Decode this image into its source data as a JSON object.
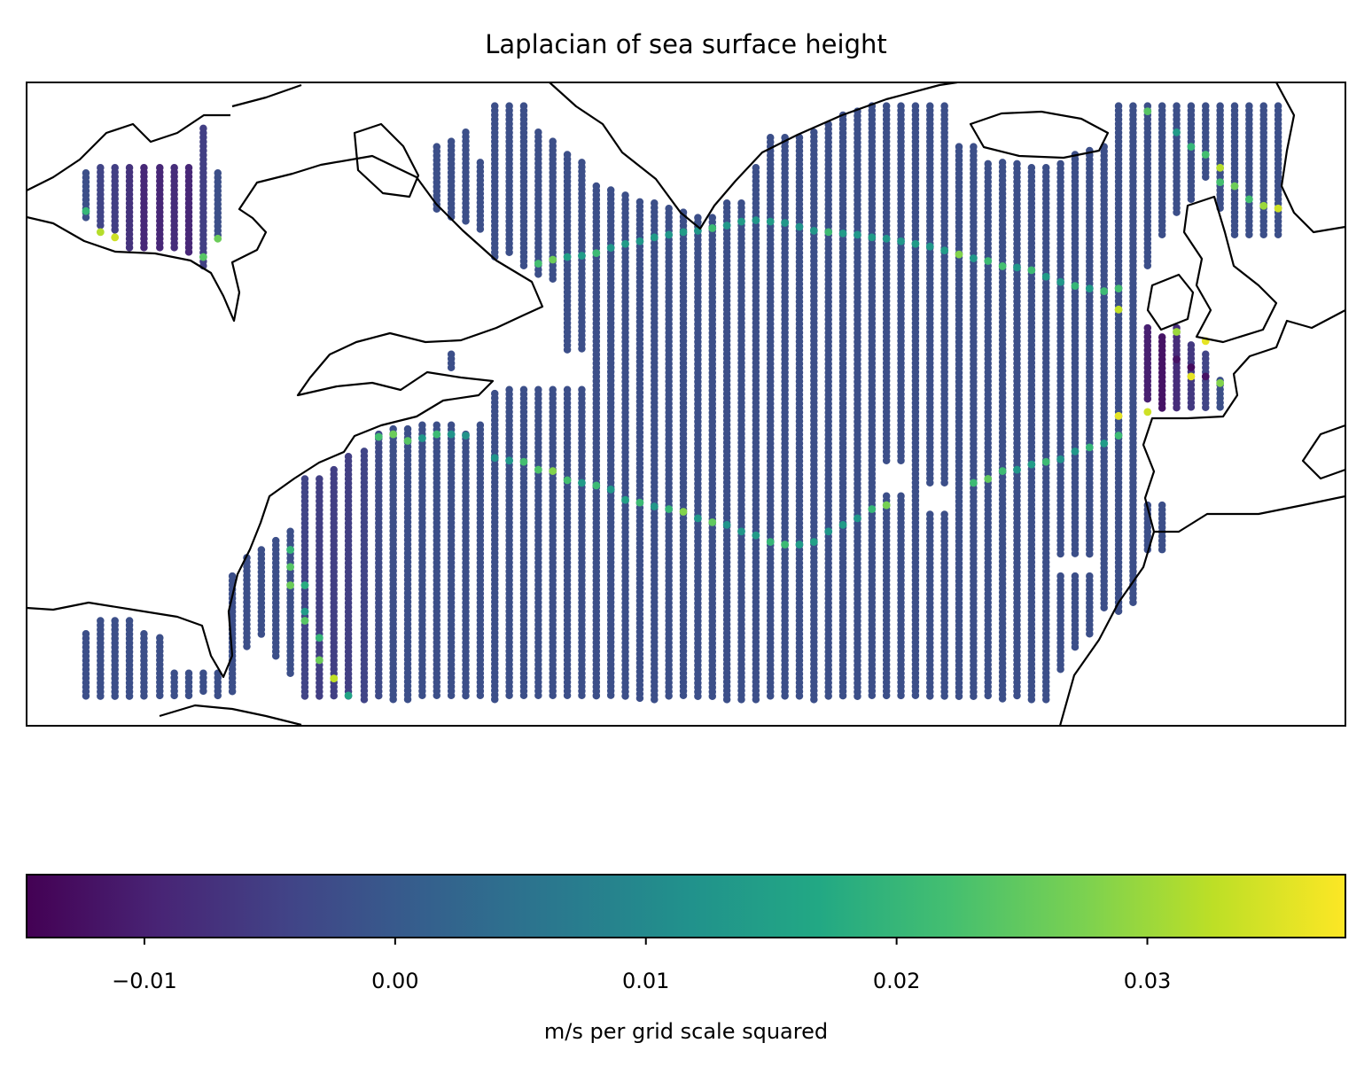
{
  "chart_data": {
    "type": "scatter-map",
    "title": "Laplacian of sea surface height",
    "xlim": [
      -93,
      7
    ],
    "ylim": [
      14,
      63
    ],
    "colorbar": {
      "colormap": "viridis",
      "label": "m/s per grid scale squared",
      "clim": [
        -0.0147,
        0.0379
      ],
      "ticks": [
        {
          "value": -0.01,
          "label": "−0.01"
        },
        {
          "value": 0,
          "label": "0.00"
        },
        0.01,
        0.02,
        0.03
      ]
    },
    "segments": [
      [
        -88.5,
        56.1,
        52.4,
        -0.002
      ],
      [
        -87.4,
        56.5,
        52.1,
        -0.004
      ],
      [
        -86.3,
        56.5,
        51.6,
        -0.005
      ],
      [
        -85.2,
        56.5,
        50.4,
        -0.007
      ],
      [
        -84.1,
        56.5,
        50.4,
        -0.009
      ],
      [
        -82.9,
        56.5,
        50.4,
        -0.009
      ],
      [
        -81.8,
        56.5,
        50.4,
        -0.008
      ],
      [
        -80.7,
        56.5,
        50.0,
        -0.009
      ],
      [
        -79.6,
        59.5,
        49.0,
        -0.005
      ],
      [
        -78.5,
        56.1,
        51.2,
        -0.002
      ],
      [
        -88.5,
        21.0,
        16.0,
        -0.002
      ],
      [
        -87.4,
        22.0,
        16.0,
        -0.002
      ],
      [
        -86.3,
        22.0,
        16.0,
        -0.002
      ],
      [
        -85.2,
        22.0,
        16.0,
        -0.002
      ],
      [
        -84.1,
        21.0,
        16.0,
        -0.002
      ],
      [
        -82.9,
        20.7,
        16.0,
        -0.002
      ],
      [
        -81.8,
        18.0,
        16.0,
        -0.002
      ],
      [
        -80.7,
        18.0,
        16.0,
        -0.002
      ],
      [
        -79.6,
        18.0,
        16.6,
        -0.002
      ],
      [
        -78.5,
        18.0,
        16.0,
        -0.002
      ],
      [
        -77.4,
        25.4,
        16.6,
        -0.002
      ],
      [
        -76.3,
        26.8,
        20.0,
        -0.002
      ],
      [
        -75.2,
        27.4,
        20.7,
        -0.002
      ],
      [
        -74.1,
        28.1,
        19.3,
        -0.002
      ],
      [
        -73.0,
        28.8,
        18.0,
        -0.002
      ],
      [
        -71.9,
        32.8,
        16.0,
        -0.004
      ],
      [
        -70.8,
        32.8,
        16.0,
        -0.005
      ],
      [
        -69.7,
        33.5,
        16.0,
        -0.005
      ],
      [
        -68.6,
        34.5,
        16.0,
        -0.005
      ],
      [
        -67.4,
        34.9,
        16.0,
        -0.004
      ],
      [
        -66.3,
        36.2,
        16.0,
        -0.003
      ],
      [
        -65.2,
        36.6,
        16.0,
        -0.002
      ],
      [
        -64.1,
        36.6,
        16.0,
        -0.002
      ],
      [
        -63.0,
        36.9,
        16.0,
        -0.002
      ],
      [
        -61.9,
        36.9,
        16.0,
        -0.002
      ],
      [
        -60.8,
        36.9,
        16.0,
        -0.002
      ],
      [
        -59.7,
        36.2,
        16.0,
        -0.002
      ],
      [
        -58.6,
        36.9,
        16.0,
        -0.002
      ],
      [
        -57.5,
        39.3,
        16.0,
        -0.002
      ],
      [
        -56.4,
        39.6,
        16.0,
        -0.002
      ],
      [
        -55.3,
        39.6,
        16.0,
        -0.002
      ],
      [
        -54.2,
        39.6,
        16.0,
        -0.002
      ],
      [
        -53.1,
        39.6,
        16.0,
        -0.002
      ],
      [
        -52.0,
        39.6,
        16.0,
        -0.002
      ],
      [
        -50.9,
        39.6,
        16.0,
        -0.002
      ],
      [
        -60.8,
        42.3,
        41.1,
        -0.002
      ],
      [
        -61.9,
        58.1,
        53.1,
        -0.002
      ],
      [
        -60.8,
        58.5,
        52.7,
        -0.002
      ],
      [
        -59.7,
        59.2,
        52.4,
        -0.002
      ],
      [
        -58.6,
        56.9,
        51.7,
        -0.002
      ],
      [
        -57.5,
        61.2,
        49.7,
        -0.002
      ],
      [
        -56.4,
        61.2,
        50.0,
        -0.002
      ],
      [
        -55.3,
        61.2,
        49.0,
        -0.002
      ],
      [
        -54.2,
        59.2,
        48.4,
        -0.002
      ],
      [
        -53.1,
        58.5,
        48.0,
        -0.002
      ],
      [
        -52.0,
        57.5,
        42.6,
        -0.002
      ],
      [
        -50.9,
        56.9,
        42.6,
        -0.002
      ],
      [
        -49.8,
        55.1,
        16.0,
        -0.002
      ],
      [
        -48.7,
        54.8,
        16.0,
        -0.002
      ],
      [
        -47.6,
        54.4,
        16.0,
        -0.002
      ],
      [
        -46.5,
        53.9,
        16.0,
        -0.002
      ],
      [
        -45.4,
        53.8,
        16.0,
        -0.002
      ],
      [
        -44.3,
        53.4,
        16.0,
        -0.002
      ],
      [
        -43.2,
        53.1,
        16.0,
        -0.002
      ],
      [
        -42.1,
        52.7,
        16.0,
        -0.002
      ],
      [
        -41.0,
        52.7,
        16.0,
        -0.002
      ],
      [
        -39.9,
        53.8,
        16.0,
        -0.002
      ],
      [
        -38.8,
        53.8,
        16.0,
        -0.002
      ],
      [
        -37.7,
        56.5,
        16.0,
        -0.002
      ],
      [
        -36.6,
        58.8,
        16.0,
        -0.002
      ],
      [
        -35.5,
        58.8,
        16.0,
        -0.002
      ],
      [
        -34.4,
        58.8,
        16.0,
        -0.002
      ],
      [
        -33.3,
        59.2,
        16.0,
        -0.002
      ],
      [
        -32.2,
        59.8,
        16.0,
        -0.002
      ],
      [
        -31.1,
        60.5,
        16.0,
        -0.002
      ],
      [
        -30.0,
        60.8,
        16.0,
        -0.002
      ],
      [
        -28.9,
        61.2,
        16.0,
        -0.002
      ],
      [
        -27.8,
        61.2,
        34.2,
        -0.002
      ],
      [
        -27.8,
        31.5,
        16.0,
        -0.002
      ],
      [
        -26.7,
        61.2,
        34.2,
        -0.002
      ],
      [
        -26.7,
        31.5,
        16.0,
        -0.002
      ],
      [
        -25.6,
        61.2,
        16.0,
        -0.002
      ],
      [
        -24.5,
        61.2,
        32.2,
        -0.002
      ],
      [
        -24.5,
        30.1,
        16.0,
        -0.002
      ],
      [
        -23.4,
        61.2,
        32.2,
        -0.002
      ],
      [
        -23.4,
        30.1,
        16.0,
        -0.002
      ],
      [
        -22.3,
        58.1,
        16.0,
        -0.002
      ],
      [
        -21.2,
        58.1,
        16.0,
        -0.002
      ],
      [
        -20.1,
        56.8,
        16.0,
        -0.002
      ],
      [
        -19.0,
        56.9,
        16.0,
        -0.002
      ],
      [
        -17.9,
        56.8,
        16.0,
        -0.002
      ],
      [
        -16.8,
        56.5,
        16.0,
        -0.002
      ],
      [
        -15.7,
        56.5,
        16.0,
        -0.002
      ],
      [
        -14.6,
        56.8,
        26.8,
        -0.002
      ],
      [
        -14.6,
        25.4,
        18.0,
        -0.002
      ],
      [
        -13.5,
        57.5,
        26.8,
        -0.002
      ],
      [
        -13.5,
        25.4,
        20.0,
        -0.002
      ],
      [
        -12.4,
        57.8,
        26.8,
        -0.002
      ],
      [
        -12.4,
        25.4,
        20.7,
        -0.002
      ],
      [
        -11.3,
        58.1,
        22.7,
        -0.002
      ],
      [
        -10.2,
        61.2,
        22.7,
        -0.002
      ],
      [
        -9.1,
        61.2,
        23.4,
        -0.002
      ],
      [
        -8.0,
        61.2,
        49.0,
        -0.002
      ],
      [
        -8.0,
        44.3,
        38.9,
        -0.01
      ],
      [
        -8.0,
        30.8,
        27.4,
        -0.002
      ],
      [
        -6.9,
        61.2,
        51.1,
        -0.002
      ],
      [
        -6.9,
        43.6,
        38.2,
        -0.012
      ],
      [
        -6.9,
        30.8,
        27.4,
        -0.002
      ],
      [
        -5.8,
        61.2,
        53.1,
        -0.002
      ],
      [
        -5.8,
        44.3,
        38.2,
        -0.008
      ],
      [
        -4.7,
        61.2,
        53.8,
        -0.002
      ],
      [
        -4.7,
        43.0,
        38.2,
        -0.006
      ],
      [
        -3.6,
        61.2,
        55.5,
        -0.002
      ],
      [
        -3.6,
        42.3,
        38.2,
        -0.004
      ],
      [
        -2.5,
        61.2,
        53.4,
        -0.002
      ],
      [
        -2.5,
        40.3,
        38.2,
        -0.002
      ],
      [
        -1.4,
        61.2,
        51.1,
        -0.002
      ],
      [
        -0.3,
        61.2,
        51.1,
        -0.002
      ],
      [
        0.8,
        61.2,
        51.1,
        -0.002
      ],
      [
        1.9,
        61.2,
        51.1,
        -0.002
      ]
    ],
    "points": [
      [
        -88.5,
        53.2,
        0.02
      ],
      [
        -87.4,
        51.6,
        0.032
      ],
      [
        -86.3,
        51.2,
        0.034
      ],
      [
        -78.5,
        51.1,
        0.026
      ],
      [
        -79.6,
        49.7,
        0.024
      ],
      [
        -73.0,
        27.4,
        0.02
      ],
      [
        -73.0,
        26.1,
        0.024
      ],
      [
        -73.0,
        24.7,
        0.026
      ],
      [
        -71.9,
        24.7,
        0.018
      ],
      [
        -71.9,
        22.7,
        0.014
      ],
      [
        -71.9,
        22.0,
        0.024
      ],
      [
        -70.8,
        20.7,
        0.02
      ],
      [
        -70.8,
        19.0,
        0.026
      ],
      [
        -69.7,
        17.6,
        0.033
      ],
      [
        -68.6,
        16.3,
        0.016
      ],
      [
        -66.3,
        36.0,
        0.022
      ],
      [
        -65.2,
        36.2,
        0.026
      ],
      [
        -64.1,
        35.7,
        0.024
      ],
      [
        -63.0,
        35.9,
        0.013
      ],
      [
        -61.9,
        36.2,
        0.021
      ],
      [
        -60.8,
        36.2,
        0.012
      ],
      [
        -59.7,
        36.1,
        0.012
      ],
      [
        -57.5,
        34.4,
        0.012
      ],
      [
        -56.4,
        34.2,
        0.013
      ],
      [
        -55.3,
        34.1,
        0.022
      ],
      [
        -54.2,
        33.5,
        0.023
      ],
      [
        -53.1,
        33.4,
        0.028
      ],
      [
        -52.0,
        32.7,
        0.022
      ],
      [
        -50.9,
        32.5,
        0.014
      ],
      [
        -49.8,
        32.3,
        0.021
      ],
      [
        -48.7,
        32.0,
        0.013
      ],
      [
        -47.6,
        31.2,
        0.015
      ],
      [
        -46.5,
        31.0,
        0.021
      ],
      [
        -45.4,
        30.7,
        0.013
      ],
      [
        -44.3,
        30.5,
        0.02
      ],
      [
        -43.2,
        30.3,
        0.028
      ],
      [
        -42.1,
        29.8,
        0.013
      ],
      [
        -41.0,
        29.5,
        0.025
      ],
      [
        -39.9,
        29.3,
        0.012
      ],
      [
        -38.8,
        28.8,
        0.013
      ],
      [
        -37.7,
        28.5,
        0.014
      ],
      [
        -36.6,
        28.0,
        0.02
      ],
      [
        -35.5,
        27.8,
        0.021
      ],
      [
        -34.4,
        27.8,
        0.014
      ],
      [
        -33.3,
        28.0,
        0.015
      ],
      [
        -32.2,
        28.8,
        0.013
      ],
      [
        -31.1,
        29.3,
        0.014
      ],
      [
        -30.0,
        29.8,
        0.013
      ],
      [
        -28.9,
        30.5,
        0.02
      ],
      [
        -27.8,
        30.8,
        0.027
      ],
      [
        -21.2,
        32.5,
        0.021
      ],
      [
        -20.1,
        32.8,
        0.025
      ],
      [
        -19.0,
        33.4,
        0.021
      ],
      [
        -17.9,
        33.5,
        0.013
      ],
      [
        -16.8,
        33.9,
        0.014
      ],
      [
        -15.7,
        34.1,
        0.021
      ],
      [
        -14.6,
        34.3,
        0.012
      ],
      [
        -13.5,
        34.9,
        0.013
      ],
      [
        -12.4,
        35.2,
        0.02
      ],
      [
        -11.3,
        35.5,
        0.014
      ],
      [
        -10.2,
        36.1,
        0.021
      ],
      [
        -10.2,
        37.6,
        0.036
      ],
      [
        -8.0,
        37.9,
        0.034
      ],
      [
        -5.8,
        44.0,
        0.03
      ],
      [
        -5.8,
        41.9,
        -0.012
      ],
      [
        -4.7,
        41.3,
        -0.013
      ],
      [
        -4.7,
        40.6,
        0.036
      ],
      [
        -3.6,
        43.3,
        0.036
      ],
      [
        -3.6,
        40.6,
        -0.012
      ],
      [
        -2.5,
        40.1,
        0.028
      ],
      [
        -54.2,
        49.2,
        0.022
      ],
      [
        -53.1,
        49.5,
        0.026
      ],
      [
        -52.0,
        49.7,
        0.015
      ],
      [
        -50.9,
        49.8,
        0.014
      ],
      [
        -49.8,
        50.0,
        0.021
      ],
      [
        -48.7,
        50.4,
        0.013
      ],
      [
        -47.6,
        50.7,
        0.014
      ],
      [
        -46.5,
        50.9,
        0.013
      ],
      [
        -45.4,
        51.2,
        0.014
      ],
      [
        -44.3,
        51.4,
        0.013
      ],
      [
        -43.2,
        51.6,
        0.014
      ],
      [
        -42.1,
        51.7,
        0.013
      ],
      [
        -41.0,
        51.9,
        0.021
      ],
      [
        -39.9,
        52.1,
        0.013
      ],
      [
        -38.8,
        52.4,
        0.014
      ],
      [
        -37.7,
        52.5,
        0.013
      ],
      [
        -36.6,
        52.4,
        0.014
      ],
      [
        -35.5,
        52.3,
        0.013
      ],
      [
        -34.4,
        52.0,
        0.012
      ],
      [
        -33.3,
        51.7,
        0.013
      ],
      [
        -32.2,
        51.6,
        0.021
      ],
      [
        -31.1,
        51.5,
        0.014
      ],
      [
        -30.0,
        51.4,
        0.013
      ],
      [
        -28.9,
        51.2,
        0.014
      ],
      [
        -27.8,
        51.1,
        0.013
      ],
      [
        -26.7,
        50.9,
        0.013
      ],
      [
        -25.6,
        50.7,
        0.014
      ],
      [
        -24.5,
        50.5,
        0.013
      ],
      [
        -23.4,
        50.2,
        0.014
      ],
      [
        -22.3,
        49.9,
        0.028
      ],
      [
        -21.2,
        49.6,
        0.013
      ],
      [
        -20.1,
        49.4,
        0.021
      ],
      [
        -19.0,
        49.0,
        0.022
      ],
      [
        -17.9,
        48.9,
        0.013
      ],
      [
        -16.8,
        48.7,
        0.021
      ],
      [
        -15.7,
        48.2,
        0.014
      ],
      [
        -14.6,
        47.8,
        0.013
      ],
      [
        -13.5,
        47.5,
        0.02
      ],
      [
        -12.4,
        47.3,
        0.014
      ],
      [
        -11.3,
        47.1,
        0.021
      ],
      [
        -10.2,
        47.3,
        0.022
      ],
      [
        -10.2,
        45.7,
        0.033
      ],
      [
        -8.0,
        60.8,
        0.024
      ],
      [
        -5.8,
        59.2,
        0.014
      ],
      [
        -4.7,
        58.1,
        0.02
      ],
      [
        -3.6,
        57.5,
        0.022
      ],
      [
        -2.5,
        56.5,
        0.032
      ],
      [
        -2.5,
        55.4,
        0.022
      ],
      [
        -1.4,
        55.1,
        0.026
      ],
      [
        -0.3,
        54.1,
        0.022
      ],
      [
        0.8,
        53.6,
        0.03
      ],
      [
        1.9,
        53.4,
        0.034
      ]
    ]
  }
}
